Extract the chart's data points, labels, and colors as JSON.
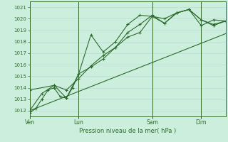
{
  "bg_color": "#cceedd",
  "grid_color": "#aaddcc",
  "line_color": "#2d6b2d",
  "ylabel_text": "Pression niveau de la mer( hPa )",
  "ylim": [
    1011.5,
    1021.5
  ],
  "yticks": [
    1012,
    1013,
    1014,
    1015,
    1016,
    1017,
    1018,
    1019,
    1020,
    1021
  ],
  "xtick_labels": [
    "Ven",
    "Lun",
    "Sam",
    "Dim"
  ],
  "xtick_positions": [
    0,
    48,
    120,
    168
  ],
  "vline_positions": [
    0,
    48,
    120,
    168
  ],
  "total_hours": 192,
  "series1": {
    "x": [
      0,
      6,
      12,
      18,
      24,
      30,
      36,
      42,
      48,
      60,
      72,
      84,
      96,
      108,
      120,
      132,
      144,
      156,
      168,
      180,
      192
    ],
    "y": [
      1011.8,
      1012.2,
      1013.0,
      1013.8,
      1014.0,
      1013.2,
      1013.1,
      1014.0,
      1015.2,
      1015.8,
      1016.5,
      1017.5,
      1018.4,
      1018.8,
      1020.2,
      1020.0,
      1020.5,
      1020.8,
      1019.9,
      1019.5,
      1019.8
    ]
  },
  "series2": {
    "x": [
      0,
      12,
      24,
      36,
      48,
      60,
      72,
      84,
      96,
      108,
      120,
      132,
      144,
      156,
      168,
      180,
      192
    ],
    "y": [
      1012.0,
      1013.5,
      1014.2,
      1013.8,
      1014.8,
      1015.9,
      1016.8,
      1017.5,
      1018.8,
      1019.5,
      1020.3,
      1019.6,
      1020.5,
      1020.8,
      1019.9,
      1019.4,
      1019.8
    ]
  },
  "series3": {
    "x": [
      0,
      24,
      36,
      48,
      60,
      72,
      84,
      96,
      108,
      120,
      132,
      144,
      156,
      168,
      180,
      192
    ],
    "y": [
      1013.8,
      1014.2,
      1013.1,
      1015.2,
      1018.6,
      1017.1,
      1018.0,
      1019.5,
      1020.3,
      1020.2,
      1019.6,
      1020.5,
      1020.8,
      1019.4,
      1019.9,
      1019.8
    ]
  },
  "series4": {
    "x": [
      0,
      192
    ],
    "y": [
      1012.0,
      1018.7
    ]
  }
}
